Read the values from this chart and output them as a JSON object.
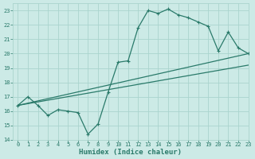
{
  "title": "",
  "xlabel": "Humidex (Indice chaleur)",
  "ylabel": "",
  "bg_color": "#cceae6",
  "grid_color": "#aad4ce",
  "line_color": "#2a7a6a",
  "xlim": [
    -0.5,
    23
  ],
  "ylim": [
    14,
    23.5
  ],
  "xticks": [
    0,
    1,
    2,
    3,
    4,
    5,
    6,
    7,
    8,
    9,
    10,
    11,
    12,
    13,
    14,
    15,
    16,
    17,
    18,
    19,
    20,
    21,
    22,
    23
  ],
  "yticks": [
    14,
    15,
    16,
    17,
    18,
    19,
    20,
    21,
    22,
    23
  ],
  "line1_x": [
    0,
    1,
    2,
    3,
    4,
    5,
    6,
    7,
    8,
    9,
    10,
    11,
    12,
    13,
    14,
    15,
    16,
    17,
    18,
    19,
    20,
    21,
    22,
    23
  ],
  "line1_y": [
    16.4,
    17.0,
    16.4,
    15.7,
    16.1,
    16.0,
    15.9,
    14.4,
    15.1,
    17.3,
    19.4,
    19.5,
    21.8,
    23.0,
    22.8,
    23.1,
    22.7,
    22.5,
    22.2,
    21.9,
    20.2,
    21.5,
    20.4,
    20.0
  ],
  "line2_x": [
    0,
    23
  ],
  "line2_y": [
    16.4,
    20.0
  ],
  "line3_x": [
    0,
    23
  ],
  "line3_y": [
    16.4,
    19.2
  ],
  "markersize": 2.5,
  "linewidth": 0.9,
  "tick_fontsize": 5.0,
  "xlabel_fontsize": 6.5
}
